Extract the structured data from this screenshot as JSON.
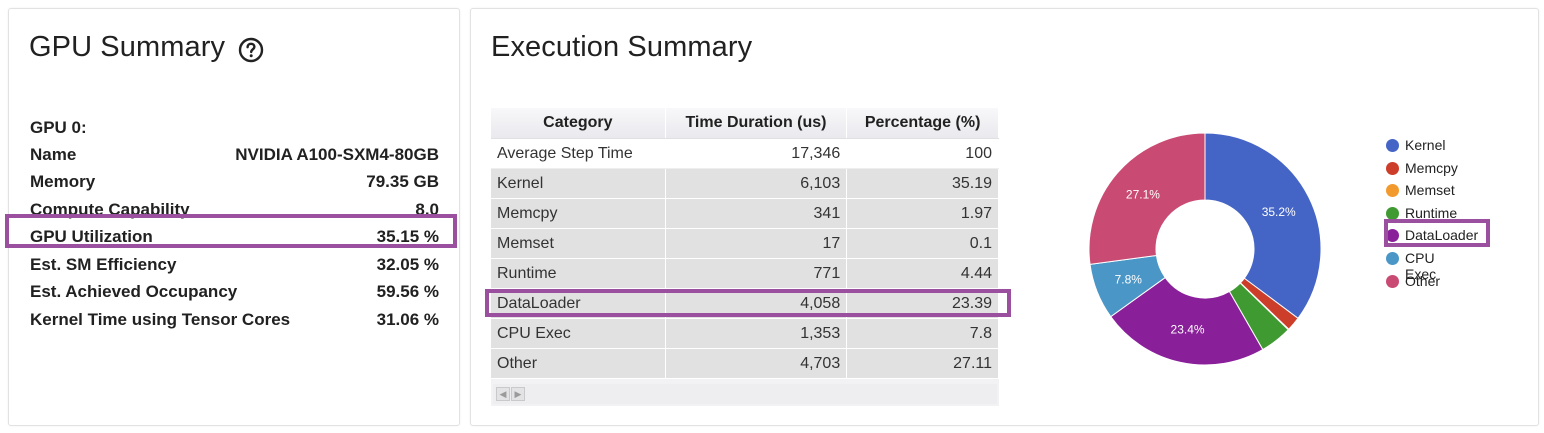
{
  "gpu_summary": {
    "title": "GPU Summary",
    "help_icon": "help-circle-icon",
    "gpu_id": "GPU 0:",
    "rows": [
      {
        "key": "Name",
        "value": "NVIDIA A100-SXM4-80GB"
      },
      {
        "key": "Memory",
        "value": "79.35 GB"
      },
      {
        "key": "Compute Capability",
        "value": "8.0"
      },
      {
        "key": "GPU Utilization",
        "value": "35.15 %"
      },
      {
        "key": "Est. SM Efficiency",
        "value": "32.05 %"
      },
      {
        "key": "Est. Achieved Occupancy",
        "value": "59.56 %"
      },
      {
        "key": "Kernel Time using Tensor Cores",
        "value": "31.06 %"
      }
    ]
  },
  "execution_summary": {
    "title": "Execution Summary",
    "table": {
      "headers": [
        "Category",
        "Time Duration (us)",
        "Percentage (%)"
      ],
      "rows": [
        [
          "Average Step Time",
          "17,346",
          "100"
        ],
        [
          "Kernel",
          "6,103",
          "35.19"
        ],
        [
          "Memcpy",
          "341",
          "1.97"
        ],
        [
          "Memset",
          "17",
          "0.1"
        ],
        [
          "Runtime",
          "771",
          "4.44"
        ],
        [
          "DataLoader",
          "4,058",
          "23.39"
        ],
        [
          "CPU Exec",
          "1,353",
          "7.8"
        ],
        [
          "Other",
          "4,703",
          "27.11"
        ]
      ]
    }
  },
  "highlight_color": "#9b4f9f",
  "chart_data": {
    "type": "pie",
    "donut": true,
    "categories": [
      "Kernel",
      "Memcpy",
      "Memset",
      "Runtime",
      "DataLoader",
      "CPU Exec",
      "Other"
    ],
    "values": [
      35.19,
      1.97,
      0.1,
      4.44,
      23.39,
      7.8,
      27.11
    ],
    "slice_labels": [
      "35.2%",
      "",
      "",
      "",
      "23.4%",
      "7.8%",
      "27.1%"
    ],
    "colors": [
      "#4565c6",
      "#cc3d2a",
      "#f39a2e",
      "#3f9a32",
      "#8a1f9a",
      "#4a96c7",
      "#c94a72"
    ],
    "legend_position": "right",
    "legend_highlight": "DataLoader"
  }
}
